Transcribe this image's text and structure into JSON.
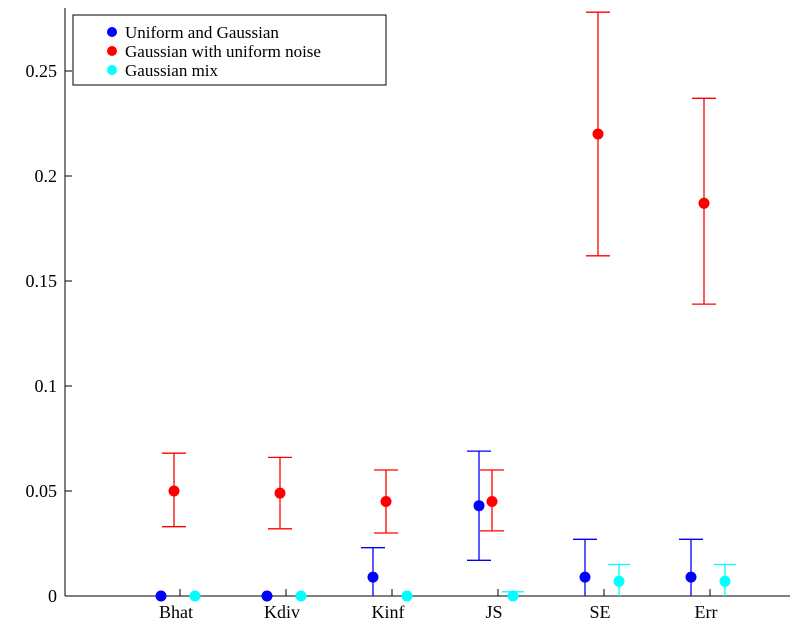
{
  "chart_data": {
    "type": "scatter",
    "title": "",
    "xlabel": "",
    "ylabel": "",
    "categories": [
      "Bhat",
      "Kdiv",
      "Kinf",
      "JS",
      "SE",
      "Err"
    ],
    "ylim": [
      0,
      0.28
    ],
    "yticks": [
      0,
      0.05,
      0.1,
      0.15,
      0.2,
      0.25
    ],
    "ytick_labels": [
      "0",
      "0.05",
      "0.1",
      "0.15",
      "0.2",
      "0.25"
    ],
    "grid": false,
    "legend_position": "top-left",
    "series": [
      {
        "name": "Uniform and Gaussian",
        "color": "#0000ff",
        "values": [
          0.0,
          0.0,
          0.009,
          0.043,
          0.009,
          0.009
        ],
        "err_low": [
          0.0,
          0.0,
          0.0,
          0.017,
          0.0,
          0.0
        ],
        "err_high": [
          0.0,
          0.0,
          0.023,
          0.069,
          0.027,
          0.027
        ]
      },
      {
        "name": "Gaussian with uniform noise",
        "color": "#ff0000",
        "values": [
          0.05,
          0.049,
          0.045,
          0.045,
          0.22,
          0.187
        ],
        "err_low": [
          0.033,
          0.032,
          0.03,
          0.031,
          0.162,
          0.139
        ],
        "err_high": [
          0.068,
          0.066,
          0.06,
          0.06,
          0.278,
          0.237
        ]
      },
      {
        "name": "Gaussian mix",
        "color": "#00ffff",
        "values": [
          0.0,
          0.0,
          0.0,
          0.0,
          0.007,
          0.007
        ],
        "err_low": [
          0.0,
          0.0,
          0.0,
          0.0,
          0.0,
          0.0
        ],
        "err_high": [
          0.0,
          0.0,
          0.0,
          0.002,
          0.015,
          0.015
        ]
      }
    ]
  }
}
